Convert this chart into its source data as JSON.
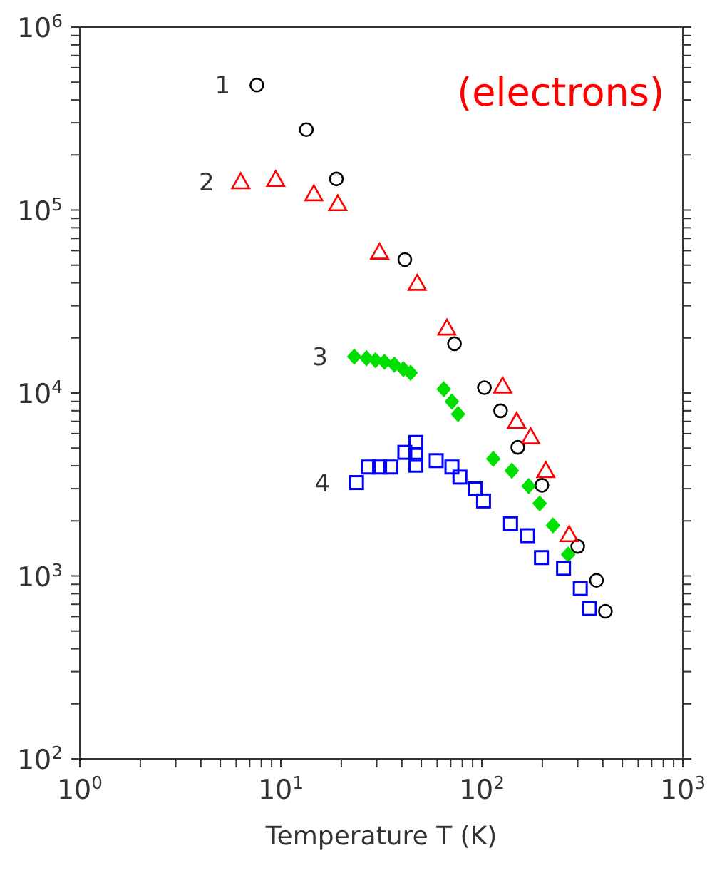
{
  "chart_data": {
    "type": "scatter",
    "xlabel": "Temperature T (K)",
    "annotations": [
      "(electrons)"
    ],
    "log": "xy",
    "xlim": [
      1,
      1000
    ],
    "ylim": [
      100,
      1000000
    ],
    "xticks": [
      {
        "value": 1,
        "label": "10$^{0}$"
      },
      {
        "value": 2,
        "label": null
      },
      {
        "value": 3,
        "label": null
      },
      {
        "value": 4,
        "label": null
      },
      {
        "value": 5,
        "label": null
      },
      {
        "value": 6,
        "label": null
      },
      {
        "value": 7,
        "label": null
      },
      {
        "value": 8,
        "label": null
      },
      {
        "value": 9,
        "label": null
      },
      {
        "value": 10,
        "label": "10$^{1}$"
      },
      {
        "value": 20,
        "label": null
      },
      {
        "value": 30,
        "label": null
      },
      {
        "value": 40,
        "label": null
      },
      {
        "value": 50,
        "label": null
      },
      {
        "value": 60,
        "label": null
      },
      {
        "value": 70,
        "label": null
      },
      {
        "value": 80,
        "label": null
      },
      {
        "value": 90,
        "label": null
      },
      {
        "value": 100,
        "label": "10$^{2}$"
      },
      {
        "value": 200,
        "label": null
      },
      {
        "value": 300,
        "label": null
      },
      {
        "value": 400,
        "label": null
      },
      {
        "value": 500,
        "label": null
      },
      {
        "value": 600,
        "label": null
      },
      {
        "value": 700,
        "label": null
      },
      {
        "value": 800,
        "label": null
      },
      {
        "value": 900,
        "label": null
      },
      {
        "value": 1000,
        "label": "10$^{3}$"
      }
    ],
    "yticks": [
      {
        "value": 100,
        "label": "10$^{2}$"
      },
      {
        "value": 200,
        "label": null
      },
      {
        "value": 300,
        "label": null
      },
      {
        "value": 400,
        "label": null
      },
      {
        "value": 500,
        "label": null
      },
      {
        "value": 600,
        "label": null
      },
      {
        "value": 700,
        "label": null
      },
      {
        "value": 800,
        "label": null
      },
      {
        "value": 900,
        "label": null
      },
      {
        "value": 1000,
        "label": "10$^{3}$"
      },
      {
        "value": 2000,
        "label": null
      },
      {
        "value": 3000,
        "label": null
      },
      {
        "value": 4000,
        "label": null
      },
      {
        "value": 5000,
        "label": null
      },
      {
        "value": 6000,
        "label": null
      },
      {
        "value": 7000,
        "label": null
      },
      {
        "value": 8000,
        "label": null
      },
      {
        "value": 9000,
        "label": null
      },
      {
        "value": 10000,
        "label": "10$^{4}$"
      },
      {
        "value": 20000,
        "label": null
      },
      {
        "value": 30000,
        "label": null
      },
      {
        "value": 40000,
        "label": null
      },
      {
        "value": 50000,
        "label": null
      },
      {
        "value": 60000,
        "label": null
      },
      {
        "value": 70000,
        "label": null
      },
      {
        "value": 80000,
        "label": null
      },
      {
        "value": 90000,
        "label": null
      },
      {
        "value": 100000,
        "label": "10$^{5}$"
      },
      {
        "value": 200000,
        "label": null
      },
      {
        "value": 300000,
        "label": null
      },
      {
        "value": 400000,
        "label": null
      },
      {
        "value": 500000,
        "label": null
      },
      {
        "value": 600000,
        "label": null
      },
      {
        "value": 700000,
        "label": null
      },
      {
        "value": 800000,
        "label": null
      },
      {
        "value": 900000,
        "label": null
      },
      {
        "value": 1000000,
        "label": "10$^{6}$"
      }
    ],
    "series": [
      {
        "name": "1",
        "color": "#000000",
        "marker": "circle",
        "x": [
          7.6,
          13.4,
          18.9,
          41.4,
          73.1,
          103,
          124,
          151,
          199,
          300,
          372,
          412
        ],
        "values": [
          482000,
          275000,
          148000,
          53600,
          18600,
          10700,
          8000,
          5050,
          3130,
          1450,
          946,
          641
        ]
      },
      {
        "name": "2",
        "color": "#ff0000",
        "marker": "triangle",
        "x": [
          6.32,
          9.43,
          14.6,
          19.2,
          31.0,
          47.7,
          67.0,
          127,
          149,
          175,
          208,
          272
        ],
        "values": [
          142600,
          146700,
          122500,
          108100,
          58800,
          39700,
          22600,
          10900,
          7000,
          5760,
          3760,
          1680
        ]
      },
      {
        "name": "3",
        "color": "#00e000",
        "marker": "diamond",
        "x": [
          23.2,
          26.7,
          29.6,
          32.8,
          36.7,
          40.7,
          44.2,
          64.7,
          71.0,
          76.2,
          114,
          141,
          171,
          194,
          226,
          269
        ],
        "values": [
          15800,
          15500,
          15100,
          14800,
          14300,
          13500,
          12900,
          10500,
          8980,
          7680,
          4370,
          3760,
          3100,
          2490,
          1890,
          1310
        ]
      },
      {
        "name": "4",
        "color": "#0000ff",
        "marker": "square",
        "x": [
          23.8,
          27.3,
          31.0,
          35.3,
          41.4,
          47.0,
          47.0,
          47.0,
          59.3,
          71.0,
          77.8,
          92.6,
          102,
          139,
          169,
          198,
          255,
          309,
          343
        ],
        "values": [
          3240,
          3940,
          3940,
          3940,
          4740,
          5370,
          4620,
          4030,
          4270,
          3940,
          3470,
          2990,
          2570,
          1930,
          1660,
          1260,
          1100,
          853,
          664
        ]
      }
    ]
  }
}
